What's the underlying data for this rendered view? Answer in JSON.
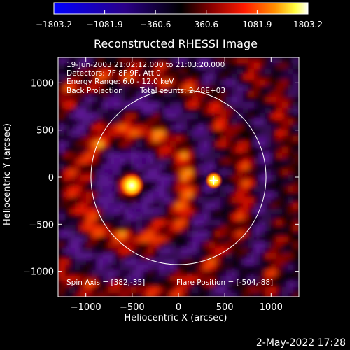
{
  "chart_data": {
    "type": "heatmap",
    "title": "Reconstructed RHESSI Image",
    "xlabel": "Heliocentric X (arcsec)",
    "ylabel": "Heliocentric Y (arcsec)",
    "xlim": [
      -1300,
      1300
    ],
    "ylim": [
      -1270,
      1270
    ],
    "xticks": [
      -1000,
      -500,
      0,
      500,
      1000
    ],
    "yticks": [
      -1000,
      -500,
      0,
      500,
      1000
    ],
    "xtick_labels": [
      "−1000",
      "−500",
      "0",
      "500",
      "1000"
    ],
    "ytick_labels": [
      "−1000",
      "−500",
      "0",
      "500",
      "1000"
    ],
    "colorbar": {
      "min": -1803.2,
      "max": 1803.2,
      "tick_values": [
        -1803.2,
        -1081.9,
        -360.6,
        360.6,
        1081.9,
        1803.2
      ],
      "tick_labels": [
        "−1803.2",
        "−1081.9",
        "−360.6",
        "360.6",
        "1081.9",
        "1803.2"
      ],
      "colors": [
        "#0000ff",
        "#ff2000",
        "#ff9000",
        "#ffff30",
        "#ffffff"
      ]
    },
    "annotations": {
      "time_range": "19-Jun-2003 21:02:12.000 to 21:03:20.000",
      "detectors": "Detectors: 7F 8F 9F, Att 0",
      "energy_range": "Energy Range: 6.0 - 12.0 keV",
      "method": "Back Projection",
      "total_counts": "Total counts: 2.48E+03",
      "spin_axis": "Spin Axis = [382,-35]",
      "flare_position": "Flare Position = [-504,-88]"
    },
    "solar_disk_radius": 945,
    "sources": [
      {
        "x": -504,
        "y": -88,
        "value": 1803.2
      },
      {
        "x": 382,
        "y": -35,
        "value": 900
      }
    ],
    "spin_axis_marker": [
      382,
      -35
    ]
  },
  "footer": {
    "date": "2-May-2022 17:28"
  }
}
